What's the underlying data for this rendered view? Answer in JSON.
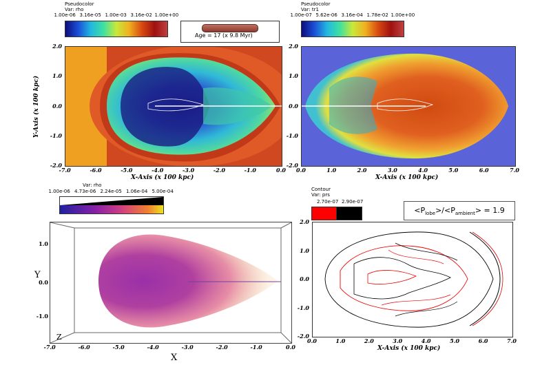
{
  "chart_data": [
    {
      "type": "heatmap",
      "name_label": "Pseudocolor",
      "var_label": "Var: rho",
      "colorbar_ticks": [
        "1.00e-06",
        "3.16e-05",
        "1.00e-03",
        "3.16e-02",
        "1.00e+00"
      ],
      "xlabel": "X-Axis (x 100 kpc)",
      "ylabel": "Y-Axis (x 100 kpc)",
      "xticks": [
        "-7.0",
        "-6.0",
        "-5.0",
        "-4.0",
        "-3.0",
        "-2.0",
        "-1.0",
        "0.0"
      ],
      "yticks": [
        "2.0",
        "1.0",
        "0.0",
        "-1.0",
        "-2.0"
      ],
      "xlim": [
        -7.0,
        0.0
      ],
      "ylim": [
        -2.0,
        2.0
      ]
    },
    {
      "type": "heatmap",
      "name_label": "Pseudocolor",
      "var_label": "Var: tr1",
      "colorbar_ticks": [
        "1.00e-07",
        "5.62e-06",
        "3.16e-04",
        "1.78e-02",
        "1.00e+00"
      ],
      "xlabel": "X-Axis (x 100 kpc)",
      "xticks": [
        "0.0",
        "1.0",
        "2.0",
        "3.0",
        "4.0",
        "5.0",
        "6.0",
        "7.0"
      ],
      "yticks": [
        "2.0",
        "1.0",
        "0.0",
        "-1.0",
        "-2.0"
      ],
      "xlim": [
        0.0,
        7.0
      ],
      "ylim": [
        -2.0,
        2.0
      ]
    },
    {
      "type": "heatmap",
      "var_label": "Var: rho",
      "colorbar_ticks": [
        "1.00e-06",
        "4.73e-06",
        "2.24e-05",
        "1.06e-04",
        "5.00e-04"
      ],
      "xlabel": "X",
      "ylabel": "Y",
      "zlabel": "Z",
      "xticks": [
        "-7.0",
        "-6.0",
        "-5.0",
        "-4.0",
        "-3.0",
        "-2.0",
        "-1.0",
        "0.0"
      ],
      "yticks": [
        "1.0",
        "0.0",
        "-1.0"
      ]
    },
    {
      "type": "line",
      "name_label": "Contour",
      "var_label": "Var: prs",
      "legend": [
        "2.70e-07",
        "2.90e-07"
      ],
      "legend_colors": [
        "#ff0000",
        "#000000"
      ],
      "xlabel": "X-Axis (x 100 kpc)",
      "xticks": [
        "0.0",
        "1.0",
        "2.0",
        "3.0",
        "4.0",
        "5.0",
        "6.0",
        "7.0"
      ],
      "yticks": [
        "2.0",
        "1.0",
        "0.0",
        "-1.0",
        "-2.0"
      ],
      "xlim": [
        0.0,
        7.0
      ],
      "ylim": [
        -2.0,
        2.0
      ]
    }
  ],
  "age_label": "Age = 17 (x 9.8 Myr)",
  "ratio_label": {
    "p1": "<P",
    "s1": "lobe",
    "p2": ">/<P",
    "s2": "ambient",
    "p3": "> = 1.9"
  }
}
